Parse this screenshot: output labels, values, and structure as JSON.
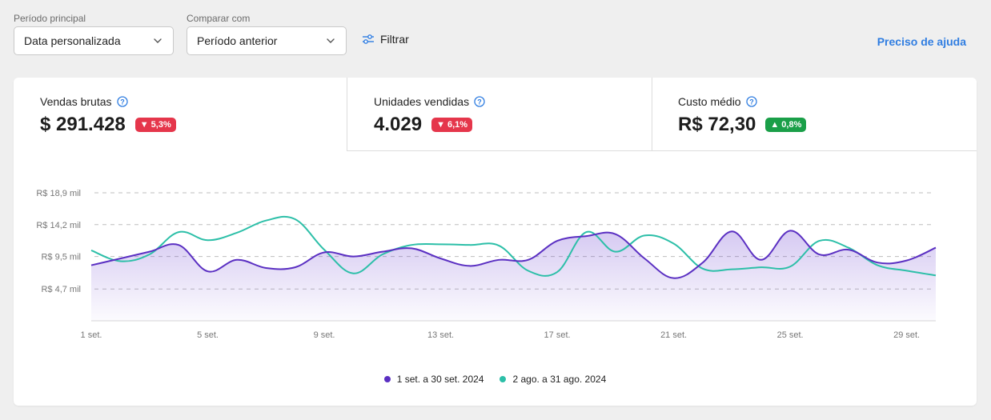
{
  "filters": {
    "primary_label": "Período principal",
    "primary_value": "Data personalizada",
    "compare_label": "Comparar com",
    "compare_value": "Período anterior",
    "filter_label": "Filtrar",
    "help_label": "Preciso de ajuda"
  },
  "metrics": [
    {
      "title": "Vendas brutas",
      "value": "$ 291.428",
      "change": "5,3%",
      "trend": "down"
    },
    {
      "title": "Unidades vendidas",
      "value": "4.029",
      "change": "6,1%",
      "trend": "down"
    },
    {
      "title": "Custo médio",
      "value": "R$ 72,30",
      "change": "0,8%",
      "trend": "up"
    }
  ],
  "colors": {
    "primary_series": "#5a2fc2",
    "compare_series": "#2cbfa8",
    "badge_down": "#e5364b",
    "badge_up": "#1a9f48",
    "link": "#2f7de1"
  },
  "chart_data": {
    "type": "line",
    "y_ticks": [
      {
        "label": "R$ 18,9 mil",
        "value": 18.9
      },
      {
        "label": "R$ 14,2 mil",
        "value": 14.2
      },
      {
        "label": "R$ 9,5 mil",
        "value": 9.5
      },
      {
        "label": "R$ 4,7 mil",
        "value": 4.7
      }
    ],
    "x_tick_labels": [
      "1 set.",
      "5 set.",
      "9 set.",
      "13 set.",
      "17 set.",
      "21 set.",
      "25 set.",
      "29 set."
    ],
    "ylim": [
      0,
      18.9
    ],
    "unit": "mil R$",
    "grid": true,
    "legend_position": "bottom",
    "series": [
      {
        "name": "1 set. a 30 set. 2024",
        "values": [
          8.2,
          9.2,
          10.2,
          11.2,
          7.3,
          9.0,
          7.8,
          7.9,
          10.1,
          9.5,
          10.2,
          10.7,
          9.2,
          8.1,
          9.0,
          9.0,
          11.8,
          12.5,
          12.8,
          9.2,
          6.3,
          8.6,
          13.2,
          9.0,
          13.3,
          9.8,
          10.5,
          8.6,
          8.9,
          10.8
        ]
      },
      {
        "name": "2 ago. a 31 ago. 2024",
        "values": [
          10.4,
          8.8,
          9.8,
          13.1,
          11.9,
          13.0,
          14.8,
          15.0,
          10.5,
          7.0,
          9.8,
          11.2,
          11.3,
          11.2,
          11.1,
          7.4,
          7.2,
          13.1,
          10.2,
          12.6,
          11.4,
          7.7,
          7.6,
          7.9,
          8.0,
          11.8,
          10.8,
          8.2,
          7.4,
          6.7
        ]
      }
    ]
  }
}
